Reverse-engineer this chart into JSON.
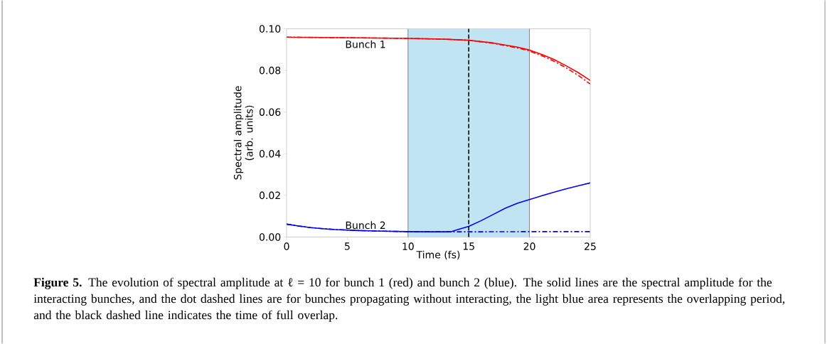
{
  "chart_data": {
    "type": "line",
    "xlabel": "Time (fs)",
    "ylabel": "Spectral amplitude\n(arb. units)",
    "xlim": [
      0,
      25
    ],
    "ylim": [
      0,
      0.1
    ],
    "xticks": [
      0,
      5,
      10,
      15,
      20,
      25
    ],
    "yticks": [
      {
        "value": 0,
        "label": "0.00"
      },
      {
        "value": 0.02,
        "label": "0.02"
      },
      {
        "value": 0.04,
        "label": "0.04"
      },
      {
        "value": 0.06,
        "label": "0.06"
      },
      {
        "value": 0.08,
        "label": "0.08"
      },
      {
        "value": 0.1,
        "label": "0.10"
      }
    ],
    "series": [
      {
        "color": "#ff0000",
        "line_style": "solid",
        "x": [
          0,
          5,
          10,
          13,
          15,
          17,
          19,
          20,
          21,
          22,
          23,
          24,
          25
        ],
        "values": [
          0.096,
          0.0957,
          0.0954,
          0.095,
          0.0945,
          0.0932,
          0.0912,
          0.0898,
          0.0877,
          0.0853,
          0.0823,
          0.079,
          0.0752
        ]
      },
      {
        "color": "#ff0000",
        "line_style": "dashdot",
        "x": [
          0,
          5,
          10,
          13,
          15,
          17,
          19,
          20,
          21,
          22,
          23,
          24,
          25
        ],
        "values": [
          0.096,
          0.0957,
          0.0954,
          0.095,
          0.0945,
          0.093,
          0.0908,
          0.0893,
          0.0871,
          0.0845,
          0.0813,
          0.0777,
          0.0735
        ]
      },
      {
        "color": "#0000ff",
        "line_style": "solid",
        "x": [
          0,
          1,
          2,
          3,
          4,
          6,
          8,
          10,
          12,
          13.5,
          14,
          15,
          16,
          17,
          18,
          19,
          20,
          21,
          22,
          23,
          24,
          25
        ],
        "values": [
          0.0062,
          0.0053,
          0.0045,
          0.004,
          0.0036,
          0.0031,
          0.0028,
          0.0026,
          0.0025,
          0.0025,
          0.0034,
          0.0051,
          0.0078,
          0.0108,
          0.0138,
          0.0162,
          0.018,
          0.0198,
          0.0215,
          0.0231,
          0.0246,
          0.026
        ]
      },
      {
        "color": "#0000ff",
        "line_style": "dashdot",
        "x": [
          0,
          1,
          2,
          3,
          4,
          6,
          8,
          10,
          12,
          13.5,
          15,
          20,
          25
        ],
        "values": [
          0.0062,
          0.0053,
          0.0045,
          0.004,
          0.0036,
          0.0031,
          0.0028,
          0.0026,
          0.0025,
          0.0025,
          0.0025,
          0.0026,
          0.0026
        ]
      }
    ],
    "bands": [
      {
        "axis": "x",
        "from": 10,
        "to": 20,
        "color": "#c1e4f3"
      }
    ],
    "ref_lines": [
      {
        "axis": "x",
        "value": 15,
        "color": "#000000",
        "line_style": "dashed"
      }
    ],
    "annotations": [
      {
        "text": "Bunch 1",
        "x": 6.5,
        "y": 0.0952
      },
      {
        "text": "Bunch 2",
        "x": 6.5,
        "y": 0.0031
      },
      "**Figure 5.** The evolution of spectral amplitude at ℓ = 10 for bunch 1 (red) and bunch 2 (blue). The solid lines are the spectral amplitude for the interacting bunches, and the dot dashed lines are for bunches propagating without interacting, the light blue area represents the overlapping period, and the black dashed line indicates the time of full overlap."
    ]
  }
}
